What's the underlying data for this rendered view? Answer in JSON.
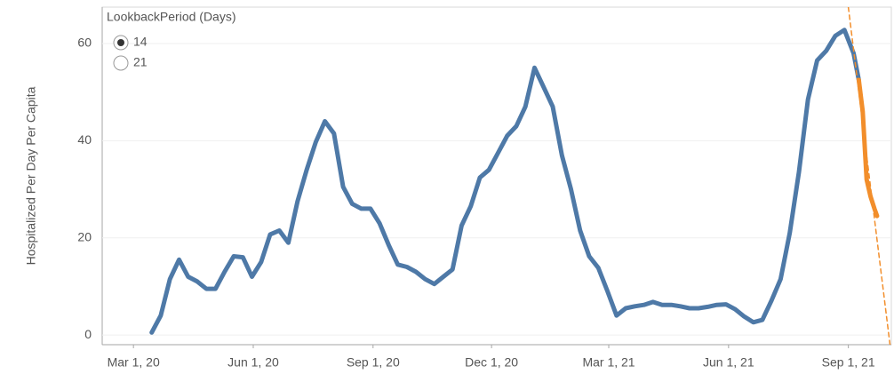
{
  "chart_data": {
    "type": "line",
    "y_label": "Hospitalized Per Day Per Capita",
    "parameter": {
      "title": "LookbackPeriod (Days)",
      "options": [
        "14",
        "21"
      ],
      "selected": 0
    },
    "xlim": [
      "2020-02-06",
      "2021-10-04"
    ],
    "xticks": [
      {
        "value": "2020-03-01",
        "label": "Mar 1, 20"
      },
      {
        "value": "2020-06-01",
        "label": "Jun 1, 20"
      },
      {
        "value": "2020-09-01",
        "label": "Sep 1, 20"
      },
      {
        "value": "2020-12-01",
        "label": "Dec 1, 20"
      },
      {
        "value": "2021-03-01",
        "label": "Mar 1, 21"
      },
      {
        "value": "2021-06-01",
        "label": "Jun 1, 21"
      },
      {
        "value": "2021-09-01",
        "label": "Sep 1, 21"
      }
    ],
    "ylim": [
      -2,
      67.5
    ],
    "yticks": [
      0,
      20,
      40,
      60
    ],
    "grid": true,
    "series": [
      {
        "color": "#4e79a7",
        "width": 5,
        "dashed": false,
        "x": [
          "2020-03-15",
          "2020-03-22",
          "2020-03-29",
          "2020-04-05",
          "2020-04-12",
          "2020-04-19",
          "2020-04-26",
          "2020-05-03",
          "2020-05-10",
          "2020-05-17",
          "2020-05-24",
          "2020-05-31",
          "2020-06-07",
          "2020-06-14",
          "2020-06-21",
          "2020-06-28",
          "2020-07-05",
          "2020-07-12",
          "2020-07-19",
          "2020-07-26",
          "2020-08-02",
          "2020-08-09",
          "2020-08-16",
          "2020-08-23",
          "2020-08-30",
          "2020-09-06",
          "2020-09-13",
          "2020-09-20",
          "2020-09-27",
          "2020-10-04",
          "2020-10-11",
          "2020-10-18",
          "2020-10-25",
          "2020-11-01",
          "2020-11-08",
          "2020-11-15",
          "2020-11-22",
          "2020-11-29",
          "2020-12-06",
          "2020-12-13",
          "2020-12-20",
          "2020-12-27",
          "2021-01-03",
          "2021-01-10",
          "2021-01-17",
          "2021-01-24",
          "2021-01-31",
          "2021-02-07",
          "2021-02-14",
          "2021-02-21",
          "2021-02-28",
          "2021-03-07",
          "2021-03-14",
          "2021-03-21",
          "2021-03-28",
          "2021-04-04",
          "2021-04-11",
          "2021-04-18",
          "2021-04-25",
          "2021-05-02",
          "2021-05-09",
          "2021-05-16",
          "2021-05-23",
          "2021-05-30",
          "2021-06-06",
          "2021-06-13",
          "2021-06-20",
          "2021-06-27",
          "2021-07-04",
          "2021-07-11",
          "2021-07-18",
          "2021-07-25",
          "2021-08-01",
          "2021-08-08",
          "2021-08-15",
          "2021-08-22",
          "2021-08-29",
          "2021-09-05",
          "2021-09-09"
        ],
        "values": [
          0.5,
          4,
          11.5,
          15.5,
          12,
          11,
          9.5,
          9.5,
          13,
          16.2,
          16,
          12,
          15,
          20.7,
          21.5,
          19,
          27.5,
          34,
          39.7,
          44,
          41.5,
          30.5,
          27,
          26,
          26,
          23,
          18.5,
          14.5,
          14,
          13,
          11.5,
          10.5,
          12,
          13.5,
          22.5,
          26.5,
          32.4,
          34,
          37.5,
          41,
          43,
          47,
          55,
          51,
          47,
          37,
          30,
          21.5,
          16.2,
          13.8,
          9,
          4,
          5.5,
          5.9,
          6.2,
          6.8,
          6.2,
          6.2,
          5.9,
          5.5,
          5.5,
          5.8,
          6.2,
          6.3,
          5.3,
          3.8,
          2.6,
          3.1,
          7.1,
          11.5,
          21,
          33.5,
          48.5,
          56.5,
          58.5,
          61.6,
          62.8,
          58,
          52.5
        ]
      },
      {
        "color": "#f28e2b",
        "width": 5,
        "dashed": false,
        "x": [
          "2021-09-09",
          "2021-09-12",
          "2021-09-15",
          "2021-09-18",
          "2021-09-21",
          "2021-09-23"
        ],
        "values": [
          52.5,
          46,
          32,
          28.5,
          26,
          24.5
        ]
      },
      {
        "color": "#f28e2b",
        "width": 1.5,
        "dashed": true,
        "x": [
          "2021-09-01",
          "2021-10-03"
        ],
        "values": [
          67.5,
          -2
        ]
      }
    ]
  }
}
